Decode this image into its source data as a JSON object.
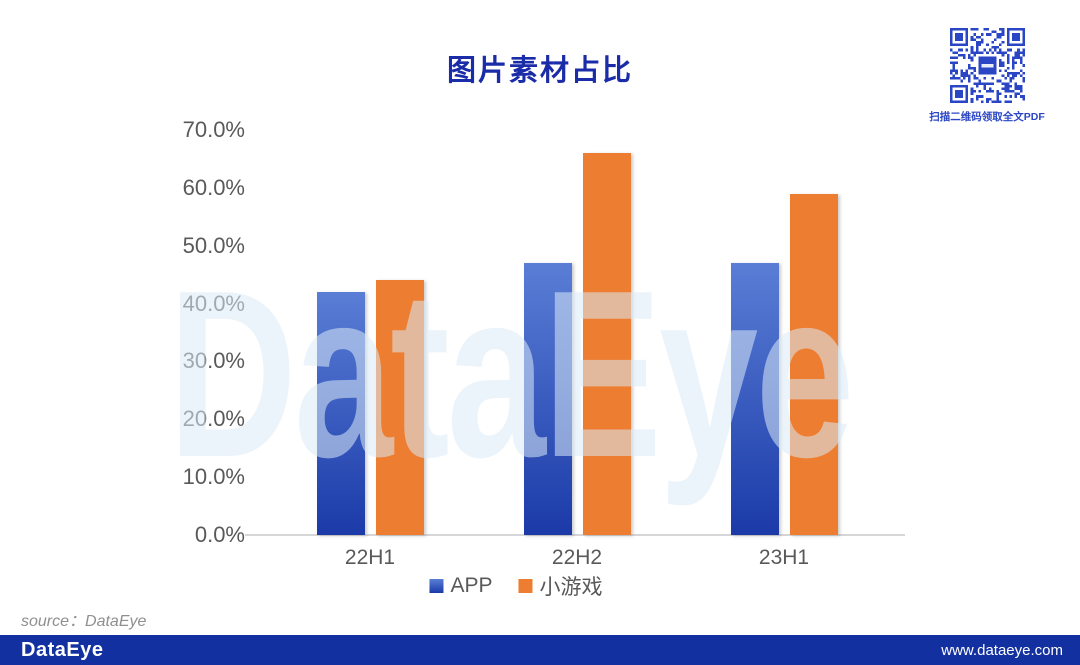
{
  "watermark": "DataEye",
  "source_note": "source：DataEye",
  "qr": {
    "caption": "扫描二维码领取全文PDF"
  },
  "footer": {
    "logo_text": "DataEye",
    "url": "www.dataeye.com"
  },
  "colors": {
    "title": "#1b2ca8",
    "app_bar_top": "#5a7ed6",
    "app_bar_bottom": "#1b3aa8",
    "minigame_bar": "#ed7d31",
    "axis_text": "#595959",
    "footer_bg": "#12309f",
    "qr_blue": "#2b46c4",
    "watermark": "#dcebf8"
  },
  "chart_data": {
    "type": "bar",
    "title": "图片素材占比",
    "categories": [
      "22H1",
      "22H2",
      "23H1"
    ],
    "series": [
      {
        "name": "APP",
        "values": [
          42.0,
          47.0,
          47.0
        ]
      },
      {
        "name": "小游戏",
        "values": [
          44.0,
          66.0,
          59.0
        ]
      }
    ],
    "unit": "%",
    "ylim": [
      0,
      70
    ],
    "ytick_values": [
      0,
      10,
      20,
      30,
      40,
      50,
      60,
      70
    ],
    "ytick_labels": [
      "0.0%",
      "10.0%",
      "20.0%",
      "30.0%",
      "40.0%",
      "50.0%",
      "60.0%",
      "70.0%"
    ],
    "grid": false,
    "legend_position": "bottom"
  }
}
